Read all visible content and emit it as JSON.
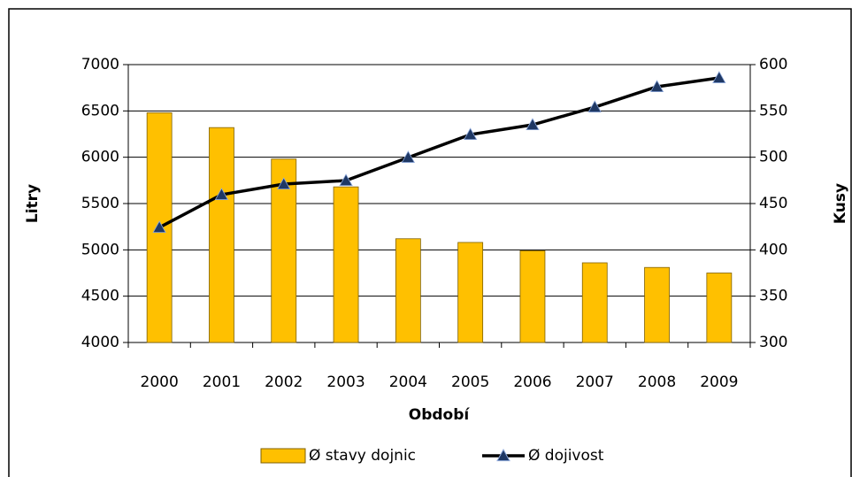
{
  "chart_data": {
    "type": "combo",
    "x_label": "Období",
    "y_label": "Litry",
    "y2_label": "Kusy",
    "categories": [
      "2000",
      "2001",
      "2002",
      "2003",
      "2004",
      "2005",
      "2006",
      "2007",
      "2008",
      "2009"
    ],
    "series": [
      {
        "name": "Ø stavy dojnic",
        "type": "bar",
        "axis": "y2",
        "color": "#ffc000",
        "values": [
          548,
          532,
          498,
          468,
          412,
          408,
          399,
          386,
          381,
          375
        ]
      },
      {
        "name": "Ø dojivost",
        "type": "line",
        "axis": "y",
        "color": "#000000",
        "marker_color": "#1f3864",
        "values": [
          5242,
          5596,
          5710,
          5748,
          5997,
          6245,
          6350,
          6541,
          6761,
          6857
        ]
      }
    ],
    "ylim": [
      4000,
      7000
    ],
    "yticks": [
      4000,
      4500,
      5000,
      5500,
      6000,
      6500,
      7000
    ],
    "y2lim": [
      300,
      600
    ],
    "y2ticks": [
      300,
      350,
      400,
      450,
      500,
      550,
      600
    ],
    "grid": true,
    "legend": "bottom"
  }
}
